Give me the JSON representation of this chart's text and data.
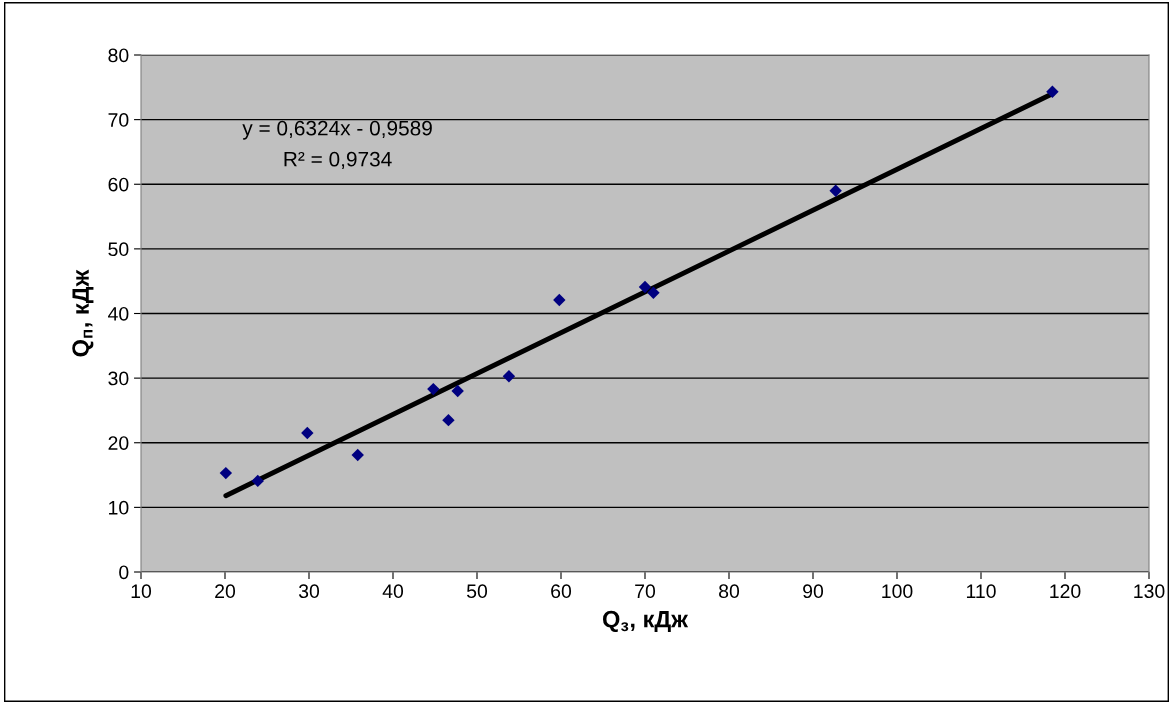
{
  "chart_data": {
    "type": "scatter",
    "xlabel": "Q$_{з}$, кДж",
    "ylabel": "Q$_{п}$, кДж",
    "xlim": [
      10,
      130
    ],
    "xticks": [
      10,
      20,
      30,
      40,
      50,
      60,
      70,
      80,
      90,
      100,
      110,
      120,
      130
    ],
    "ylim": [
      0,
      80
    ],
    "yticks": [
      0,
      10,
      20,
      30,
      40,
      50,
      60,
      70,
      80
    ],
    "grid": "y",
    "legend": false,
    "marker": "diamond",
    "annotations": [
      "y = 0,6324x - 0,9589",
      "R² = 0,9734"
    ],
    "series": [
      {
        "color": "#000080",
        "x": [
          20.1,
          23.9,
          29.8,
          35.8,
          44.8,
          46.6,
          47.7,
          53.8,
          59.8,
          70.0,
          71.0,
          92.7,
          118.5
        ],
        "values": [
          15.3,
          14.1,
          21.5,
          18.1,
          28.3,
          23.5,
          28.0,
          30.3,
          42.1,
          44.1,
          43.2,
          59.0,
          74.3
        ]
      },
      {
        "type": "line",
        "color": "#000000",
        "line_style": "solid",
        "marker": "none",
        "x": [
          20.1,
          118.5
        ],
        "values": [
          11.8,
          74.0
        ]
      }
    ]
  }
}
